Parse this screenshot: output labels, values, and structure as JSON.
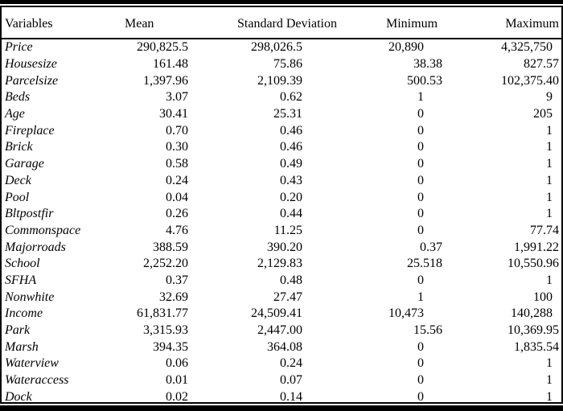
{
  "colors": {
    "text": "#000000",
    "background": "#ffffff",
    "rules": "#000000"
  },
  "table": {
    "columns": [
      "Variables",
      "Mean",
      "Standard Deviation",
      "Minimum",
      "Maximum"
    ],
    "rows": [
      [
        "Price",
        "290,825.5",
        "298,026.5",
        "20,890",
        "4,325,750"
      ],
      [
        "Housesize",
        "161.48",
        "75.86",
        "38.38",
        "827.57"
      ],
      [
        "Parcelsize",
        "1,397.96",
        "2,109.39",
        "500.53",
        "102,375.40"
      ],
      [
        "Beds",
        "3.07",
        "0.62",
        "1",
        "9"
      ],
      [
        "Age",
        "30.41",
        "25.31",
        "0",
        "205"
      ],
      [
        "Fireplace",
        "0.70",
        "0.46",
        "0",
        "1"
      ],
      [
        "Brick",
        "0.30",
        "0.46",
        "0",
        "1"
      ],
      [
        "Garage",
        "0.58",
        "0.49",
        "0",
        "1"
      ],
      [
        "Deck",
        "0.24",
        "0.43",
        "0",
        "1"
      ],
      [
        "Pool",
        "0.04",
        "0.20",
        "0",
        "1"
      ],
      [
        "Bltpostfir",
        "0.26",
        "0.44",
        "0",
        "1"
      ],
      [
        "Commonspace",
        "4.76",
        "11.25",
        "0",
        "77.74"
      ],
      [
        "Majorroads",
        "388.59",
        "390.20",
        "0.37",
        "1,991.22"
      ],
      [
        "School",
        "2,252.20",
        "2,129.83",
        "25.518",
        "10,550.96"
      ],
      [
        "SFHA",
        "0.37",
        "0.48",
        "0",
        "1"
      ],
      [
        "Nonwhite",
        "32.69",
        "27.47",
        "1",
        "100"
      ],
      [
        "Income",
        "61,831.77",
        "24,509.41",
        "10,473",
        "140,288"
      ],
      [
        "Park",
        "3,315.93",
        "2,447.00",
        "15.56",
        "10,369.95"
      ],
      [
        "Marsh",
        "394.35",
        "364.08",
        "0",
        "1,835.54"
      ],
      [
        "Waterview",
        "0.06",
        "0.24",
        "0",
        "1"
      ],
      [
        "Wateraccess",
        "0.01",
        "0.07",
        "0",
        "1"
      ],
      [
        "Dock",
        "0.02",
        "0.14",
        "0",
        "1"
      ]
    ]
  }
}
